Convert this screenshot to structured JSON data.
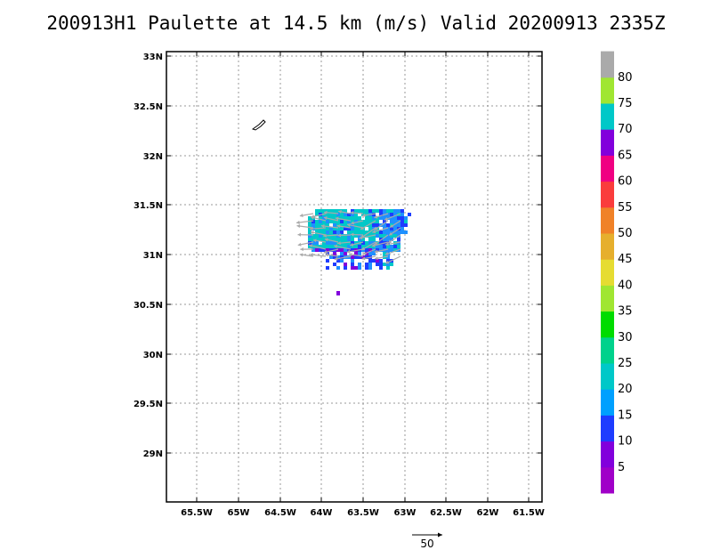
{
  "title": "200913H1 Paulette at 14.5 km (m/s) Valid 20200913 2335Z",
  "map": {
    "lon_ticks": [
      "65.5W",
      "65W",
      "64.5W",
      "64W",
      "63.5W",
      "63W",
      "62.5W",
      "62W",
      "61.5W"
    ],
    "lat_ticks": [
      "33N",
      "32.5N",
      "32N",
      "31.5N",
      "31N",
      "30.5N",
      "30N",
      "29.5N",
      "29N"
    ],
    "grid": "dotted",
    "land_color": "#ffffff",
    "island_name_icon": "bermuda-outline-icon"
  },
  "colorbar": {
    "labels": [
      "5",
      "10",
      "15",
      "20",
      "25",
      "30",
      "35",
      "40",
      "45",
      "50",
      "55",
      "60",
      "65",
      "70",
      "75",
      "80"
    ],
    "colors": [
      "#a000c8",
      "#8200dc",
      "#1e3cff",
      "#00a0ff",
      "#00c8c8",
      "#00d28c",
      "#00dc00",
      "#a0e632",
      "#e6dc32",
      "#e6af2d",
      "#f08228",
      "#fa3c3c",
      "#f00082",
      "#8200dc",
      "#00c8c8",
      "#a0e632",
      "#aaaaaa"
    ]
  },
  "reference_vector": {
    "label": "50"
  },
  "wind_field": {
    "colors": [
      "#00c8c8",
      "#1e90ff",
      "#1e3cff",
      "#8200dc",
      "#aaaaaa"
    ]
  }
}
